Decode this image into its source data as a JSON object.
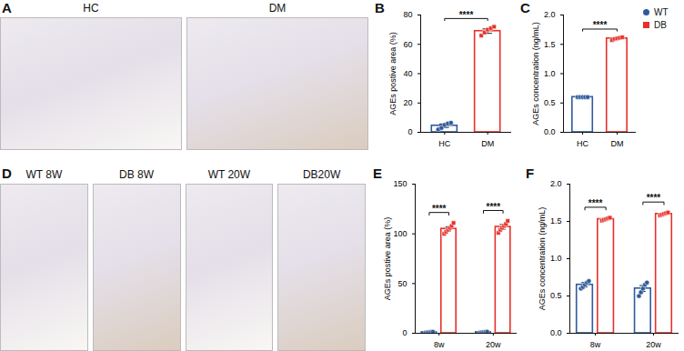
{
  "legend": [
    {
      "name": "WT",
      "color": "#2f5b9c",
      "marker": "circle"
    },
    {
      "name": "DB",
      "color": "#e8302a",
      "marker": "square"
    }
  ],
  "images": [
    {
      "title": "A",
      "labels": [
        "HC",
        "DM"
      ]
    },
    {
      "title": "D",
      "labels": [
        "WT 8W",
        "DB 8W",
        "WT 20W",
        "DB20W"
      ]
    }
  ],
  "chart_data": [
    {
      "type": "bar",
      "title": "B",
      "categories": [
        "HC",
        "DM"
      ],
      "values": [
        4.5,
        69
      ],
      "errors": [
        1.2,
        1.5
      ],
      "points": [
        [
          2,
          3,
          5,
          6,
          6.5
        ],
        [
          66,
          68,
          70,
          71,
          72
        ]
      ],
      "colors": [
        "#2f5b9c",
        "#e8302a"
      ],
      "y_label": "AGEs postive area (%)",
      "ylim": [
        0,
        80
      ],
      "yticks": [
        0,
        20,
        40,
        60,
        80
      ],
      "annotations": [
        "****"
      ]
    },
    {
      "type": "bar",
      "title": "C",
      "categories": [
        "HC",
        "DM"
      ],
      "values": [
        0.6,
        1.6
      ],
      "errors": [
        0.005,
        0.012
      ],
      "points": [
        [
          0.6,
          0.6,
          0.6,
          0.6,
          0.6
        ],
        [
          1.57,
          1.59,
          1.6,
          1.61,
          1.62
        ]
      ],
      "colors": [
        "#2f5b9c",
        "#e8302a"
      ],
      "y_label": "AGEs concentration (ng/mL)",
      "ylim": [
        0,
        2
      ],
      "yticks": [
        {
          "value": 0,
          "label": "0.0"
        },
        0.5,
        {
          "value": 1,
          "label": "1.0"
        },
        1.5,
        {
          "value": 2,
          "label": "2.0"
        }
      ],
      "annotations": [
        "****"
      ]
    },
    {
      "type": "bar",
      "title": "E",
      "categories": [
        "8w",
        "20w"
      ],
      "series": [
        {
          "name": "WT",
          "color": "#2f5b9c",
          "values": [
            1,
            1
          ],
          "errors": [
            0.3,
            0.3
          ],
          "points": [
            [
              0.5,
              0.8,
              1,
              1.2,
              1.5
            ],
            [
              0.5,
              0.8,
              1,
              1.2,
              1.5
            ]
          ]
        },
        {
          "name": "DB",
          "color": "#e8302a",
          "values": [
            105,
            107
          ],
          "errors": [
            2,
            2.5
          ],
          "points": [
            [
              100,
              102,
              104,
              106,
              108,
              111
            ],
            [
              101,
              104,
              106,
              108,
              110,
              113
            ]
          ]
        }
      ],
      "y_label": "AGEs postive area (%)",
      "ylim": [
        0,
        150
      ],
      "yticks": [
        0,
        50,
        100,
        150
      ],
      "annotations": [
        "****",
        "****"
      ]
    },
    {
      "type": "bar",
      "title": "F",
      "categories": [
        "8w",
        "20w"
      ],
      "series": [
        {
          "name": "WT",
          "color": "#2f5b9c",
          "values": [
            0.65,
            0.6
          ],
          "errors": [
            0.03,
            0.04
          ],
          "points": [
            [
              0.6,
              0.62,
              0.65,
              0.68,
              0.7
            ],
            [
              0.5,
              0.55,
              0.6,
              0.65,
              0.68
            ]
          ]
        },
        {
          "name": "DB",
          "color": "#e8302a",
          "values": [
            1.53,
            1.6
          ],
          "errors": [
            0.01,
            0.01
          ],
          "points": [
            [
              1.51,
              1.52,
              1.53,
              1.54,
              1.55
            ],
            [
              1.58,
              1.59,
              1.6,
              1.61,
              1.62
            ]
          ]
        }
      ],
      "y_label": "AGEs concentration (ng/mL)",
      "ylim": [
        0,
        2
      ],
      "yticks": [
        {
          "value": 0,
          "label": "0.0"
        },
        0.5,
        {
          "value": 1,
          "label": "1.0"
        },
        1.5,
        {
          "value": 2,
          "label": "2.0"
        }
      ],
      "annotations": [
        "****",
        "****"
      ]
    }
  ]
}
